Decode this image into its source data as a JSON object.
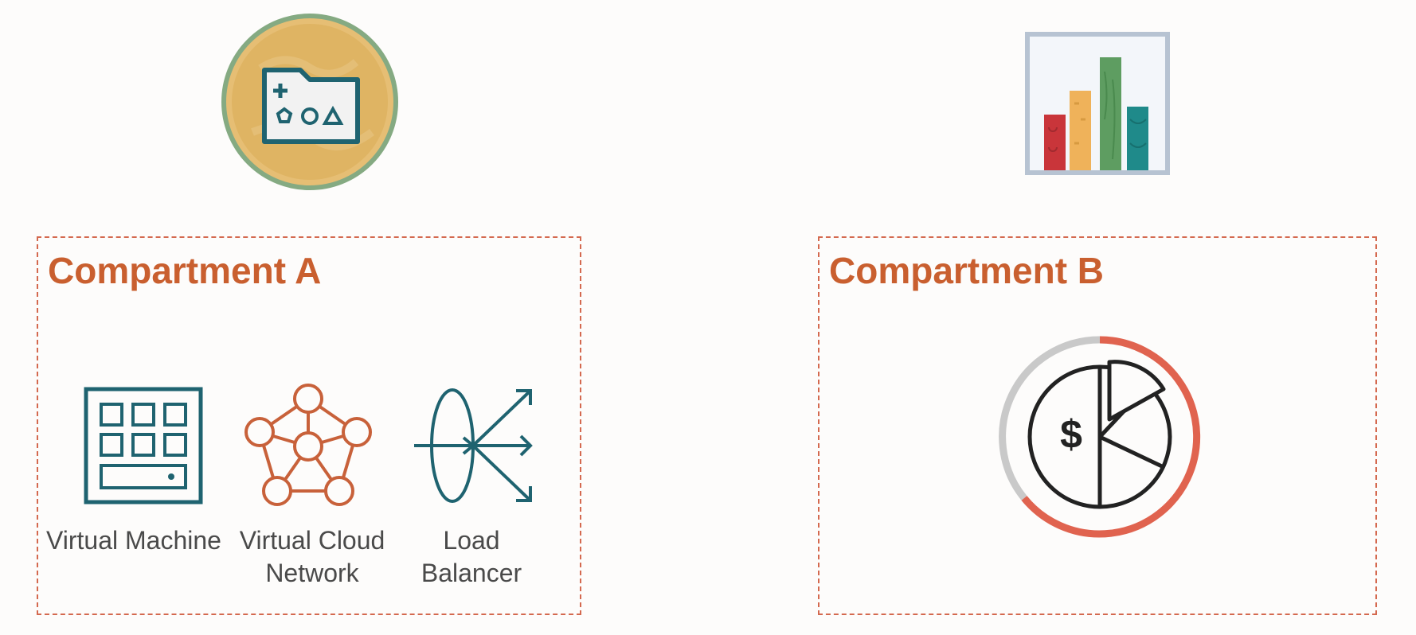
{
  "compartments": [
    {
      "title": "Compartment A"
    },
    {
      "title": "Compartment B"
    }
  ],
  "resources": [
    {
      "label": "Virtual Machine",
      "icon": "virtual-machine-icon"
    },
    {
      "label": "Virtual Cloud Network",
      "icon": "network-icon"
    },
    {
      "label": "Load Balancer",
      "icon": "load-balancer-icon"
    }
  ],
  "top_icons": [
    "compartment-folder-icon",
    "bar-chart-icon"
  ],
  "cost_icon": "cost-analysis-icon",
  "colors": {
    "accent": "#c95f2f",
    "border": "#d4694f",
    "teal": "#1f6370",
    "network": "#c8613a",
    "label_text": "#4a4a4a"
  }
}
